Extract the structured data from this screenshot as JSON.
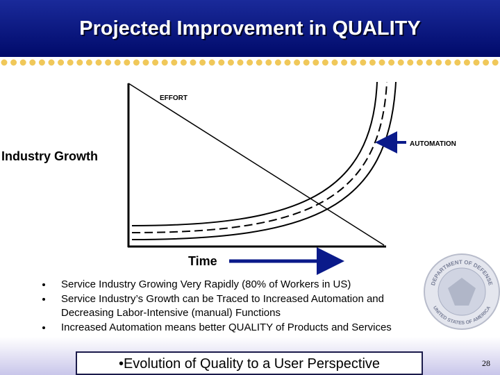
{
  "header": {
    "title": "Projected Improvement in QUALITY"
  },
  "diagram": {
    "y_label": "Industry Growth",
    "x_label": "Time",
    "effort_label": "EFFORT",
    "automation_label": "AUTOMATION"
  },
  "bullets": [
    "Service Industry Growing Very Rapidly (80% of Workers in US)",
    "Service Industry’s Growth can be Traced to Increased Automation and Decreasing Labor-Intensive (manual) Functions",
    "Increased Automation means better QUALITY of Products and Services"
  ],
  "callout": "•Evolution of Quality to a User Perspective",
  "seal": {
    "top": "DEPARTMENT OF DEFENSE",
    "bottom": "UNITED STATES OF AMERICA"
  },
  "page_number": "28"
}
